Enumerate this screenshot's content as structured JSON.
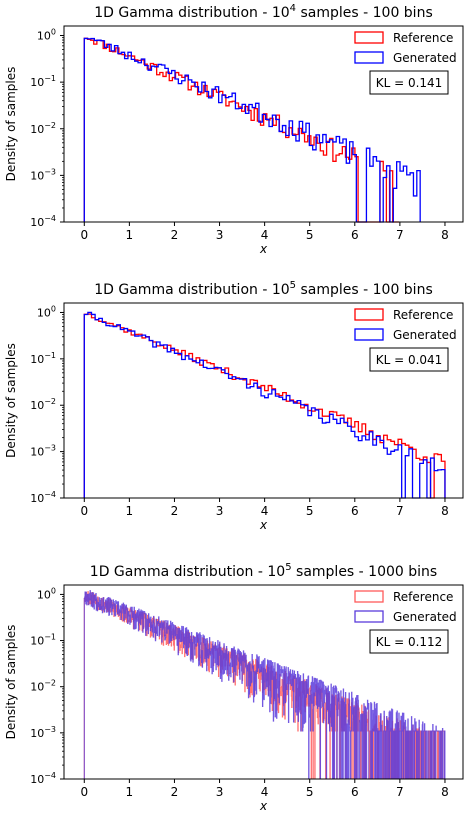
{
  "chart_data": [
    {
      "type": "histogram-step",
      "title": "1D Gamma distribution - 10^4 samples - 100 bins",
      "title_parts": {
        "prefix": "1D Gamma distribution - 10",
        "exponent": "4",
        "suffix": " samples - 100 bins"
      },
      "xlabel": "x",
      "ylabel": "Density of samples",
      "y_scale": "log",
      "xlim": [
        -0.45,
        8.4
      ],
      "ylim": [
        0.0001,
        1.6
      ],
      "x_ticks": [
        0,
        1,
        2,
        3,
        4,
        5,
        6,
        7,
        8
      ],
      "x_tick_labels": [
        "0",
        "1",
        "2",
        "3",
        "4",
        "5",
        "6",
        "7",
        "8"
      ],
      "y_ticks": [
        0.0001,
        0.001,
        0.01,
        0.1,
        1
      ],
      "y_tick_labels": [
        {
          "base": "10",
          "exp": "−4"
        },
        {
          "base": "10",
          "exp": "−3"
        },
        {
          "base": "10",
          "exp": "−2"
        },
        {
          "base": "10",
          "exp": "−1"
        },
        {
          "base": "10",
          "exp": "0"
        }
      ],
      "legend_position": "top-right",
      "annotation": "KL = 0.141",
      "series": [
        {
          "name": "Reference",
          "color": "#ff0000",
          "range": [
            0,
            6.98
          ],
          "rate": 1.0,
          "noise": 0.18,
          "seed": 11,
          "dropout": [
            [
              6.1,
              6.55
            ],
            [
              6.7,
              6.78
            ],
            [
              6.85,
              6.98
            ]
          ]
        },
        {
          "name": "Generated",
          "color": "#0000ff",
          "range": [
            0,
            7.45
          ],
          "rate": 0.96,
          "noise": 0.2,
          "seed": 23,
          "dropout": [
            [
              6.05,
              6.25
            ],
            [
              6.55,
              6.65
            ],
            [
              6.78,
              6.85
            ]
          ]
        }
      ]
    },
    {
      "type": "histogram-step",
      "title": "1D Gamma distribution - 10^5 samples - 100 bins",
      "title_parts": {
        "prefix": "1D Gamma distribution - 10",
        "exponent": "5",
        "suffix": " samples - 100 bins"
      },
      "xlabel": "x",
      "ylabel": "Density of samples",
      "y_scale": "log",
      "xlim": [
        -0.45,
        8.4
      ],
      "ylim": [
        0.0001,
        1.6
      ],
      "x_ticks": [
        0,
        1,
        2,
        3,
        4,
        5,
        6,
        7,
        8
      ],
      "x_tick_labels": [
        "0",
        "1",
        "2",
        "3",
        "4",
        "5",
        "6",
        "7",
        "8"
      ],
      "y_ticks": [
        0.0001,
        0.001,
        0.01,
        0.1,
        1
      ],
      "y_tick_labels": [
        {
          "base": "10",
          "exp": "−4"
        },
        {
          "base": "10",
          "exp": "−3"
        },
        {
          "base": "10",
          "exp": "−2"
        },
        {
          "base": "10",
          "exp": "−1"
        },
        {
          "base": "10",
          "exp": "0"
        }
      ],
      "legend_position": "top-right",
      "annotation": "KL = 0.041",
      "series": [
        {
          "name": "Reference",
          "color": "#ff0000",
          "range": [
            0,
            8.0
          ],
          "rate": 0.93,
          "noise": 0.1,
          "seed": 37,
          "dropout": [
            [
              7.65,
              7.75
            ]
          ]
        },
        {
          "name": "Generated",
          "color": "#0000ff",
          "range": [
            0,
            8.0
          ],
          "rate": 0.97,
          "noise": 0.12,
          "seed": 41,
          "dropout": [
            [
              7.05,
              7.12
            ],
            [
              7.3,
              7.4
            ],
            [
              7.6,
              7.68
            ]
          ]
        }
      ]
    },
    {
      "type": "histogram-step",
      "title": "1D Gamma distribution - 10^5 samples - 1000 bins",
      "title_parts": {
        "prefix": "1D Gamma distribution - 10",
        "exponent": "5",
        "suffix": " samples - 1000 bins"
      },
      "xlabel": "x",
      "ylabel": "Density of samples",
      "y_scale": "log",
      "xlim": [
        -0.45,
        8.4
      ],
      "ylim": [
        0.0001,
        1.6
      ],
      "x_ticks": [
        0,
        1,
        2,
        3,
        4,
        5,
        6,
        7,
        8
      ],
      "x_tick_labels": [
        "0",
        "1",
        "2",
        "3",
        "4",
        "5",
        "6",
        "7",
        "8"
      ],
      "y_ticks": [
        0.0001,
        0.001,
        0.01,
        0.1,
        1
      ],
      "y_tick_labels": [
        {
          "base": "10",
          "exp": "−4"
        },
        {
          "base": "10",
          "exp": "−3"
        },
        {
          "base": "10",
          "exp": "−2"
        },
        {
          "base": "10",
          "exp": "−1"
        },
        {
          "base": "10",
          "exp": "0"
        }
      ],
      "legend_position": "top-right",
      "annotation": "KL = 0.112",
      "series": [
        {
          "name": "Reference",
          "color": "#ff5a5a",
          "range": [
            0,
            8.0
          ],
          "rate": 1.0,
          "noise": 0.35,
          "seed": 53,
          "dropout": []
        },
        {
          "name": "Generated",
          "color": "#5a3cdc",
          "range": [
            0,
            8.0
          ],
          "rate": 0.95,
          "noise": 0.38,
          "seed": 67,
          "dropout": []
        }
      ]
    }
  ]
}
